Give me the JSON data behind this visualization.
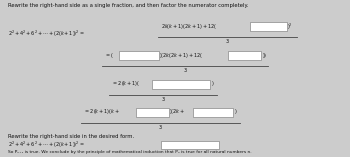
{
  "bg_color": "#cccccc",
  "text_color": "#111111",
  "box_color": "#ffffff",
  "box_edge": "#888888",
  "font_size_title": 3.8,
  "font_size_body": 3.5,
  "font_size_small": 3.2,
  "title": "Rewrite the right-hand side as a single fraction, and then factor the numerator completely.",
  "rewrite_label": "Rewrite the right-hand side in the desired form.",
  "rewrite_eq": "2² + 4² + 6² + … + (2(k+1))² =",
  "conclude": "So Pₖ₊₁ is true. We conclude by the principle of mathematical induction that Pₙ is true for all natural numbers n."
}
